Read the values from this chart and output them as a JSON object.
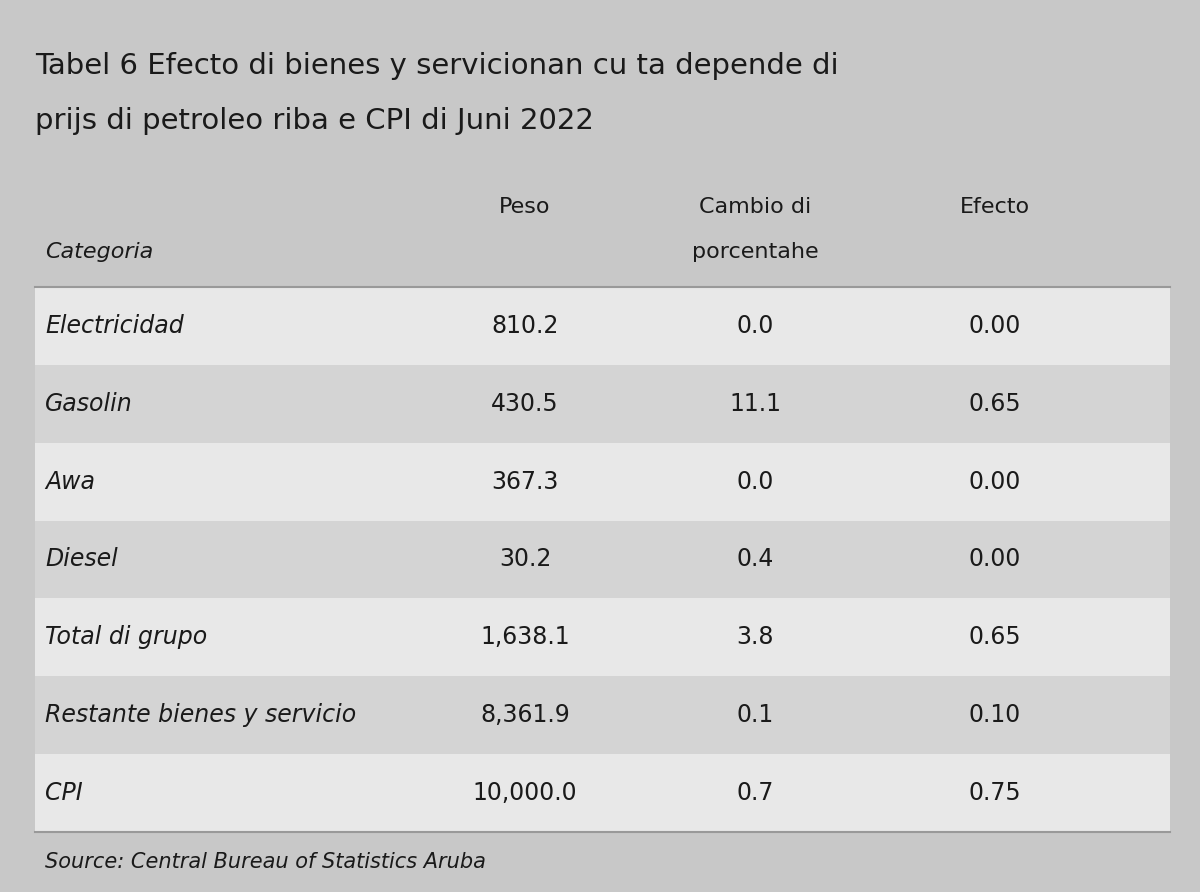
{
  "title_line1": "Tabel 6 Efecto di bienes y servicionan cu ta depende di",
  "title_line2": "prijs di petroleo riba e CPI di Juni 2022",
  "col1_header": "Peso",
  "col2_header": "Cambio di",
  "col3_header": "Efecto",
  "cat_header": "Categoria",
  "col2_subheader": "porcentahe",
  "rows": [
    [
      "Electricidad",
      "810.2",
      "0.0",
      "0.00"
    ],
    [
      "Gasolin",
      "430.5",
      "11.1",
      "0.65"
    ],
    [
      "Awa",
      "367.3",
      "0.0",
      "0.00"
    ],
    [
      "Diesel",
      "30.2",
      "0.4",
      "0.00"
    ],
    [
      "Total di grupo",
      "1,638.1",
      "3.8",
      "0.65"
    ],
    [
      "Restante bienes y servicio",
      "8,361.9",
      "0.1",
      "0.10"
    ],
    [
      "CPI",
      "10,000.0",
      "0.7",
      "0.75"
    ]
  ],
  "footer": "Source: Central Bureau of Statistics Aruba",
  "bg_color": "#c8c8c8",
  "row_color_odd": "#e8e8e8",
  "row_color_even": "#d4d4d4",
  "text_color": "#1a1a1a",
  "title_fontsize": 21,
  "header_fontsize": 16,
  "row_fontsize": 17,
  "footer_fontsize": 15
}
